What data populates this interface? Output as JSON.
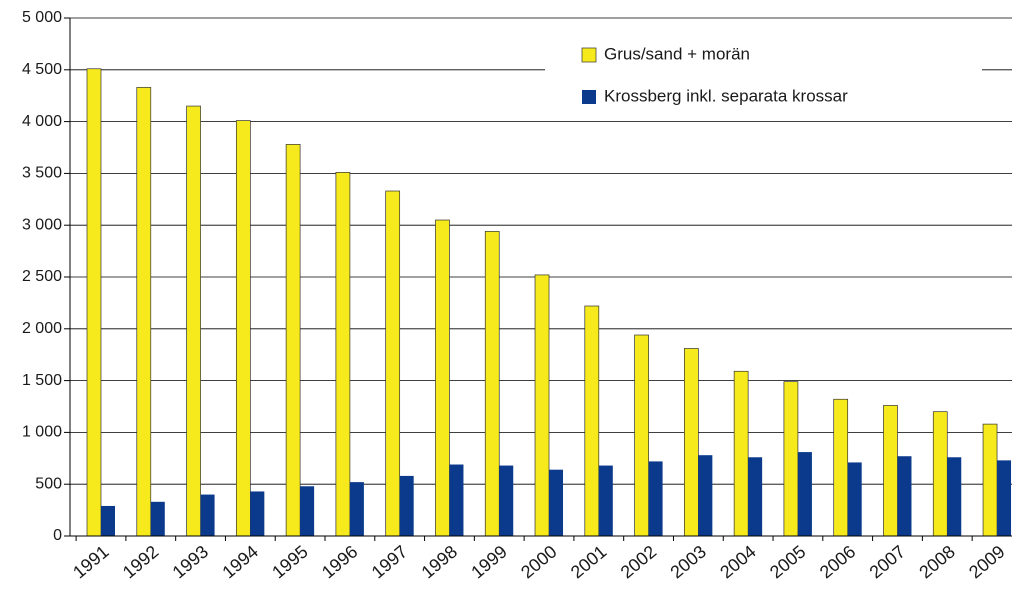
{
  "chart_data": {
    "type": "bar",
    "categories": [
      "1991",
      "1992",
      "1993",
      "1994",
      "1995",
      "1996",
      "1997",
      "1998",
      "1999",
      "2000",
      "2001",
      "2002",
      "2003",
      "2004",
      "2005",
      "2006",
      "2007",
      "2008",
      "2009"
    ],
    "series": [
      {
        "name": "Grus/sand + morän",
        "color": "#f7ea1c",
        "values": [
          4510,
          4330,
          4150,
          4010,
          3780,
          3510,
          3330,
          3050,
          2940,
          2520,
          2220,
          1940,
          1810,
          1590,
          1490,
          1320,
          1260,
          1200,
          1080
        ]
      },
      {
        "name": "Krossberg inkl. separata krossar",
        "color": "#0b3a8c",
        "values": [
          290,
          330,
          400,
          430,
          480,
          520,
          580,
          690,
          680,
          640,
          680,
          720,
          780,
          760,
          810,
          710,
          770,
          760,
          730
        ]
      }
    ],
    "ylim": [
      0,
      5000
    ],
    "yticks": [
      0,
      500,
      {
        "value": 1000,
        "label": "1 000"
      },
      {
        "value": 1500,
        "label": "1 500"
      },
      {
        "value": 2000,
        "label": "2 000"
      },
      {
        "value": 2500,
        "label": "2 500"
      },
      {
        "value": 3000,
        "label": "3 000"
      },
      {
        "value": 3500,
        "label": "3 500"
      },
      {
        "value": 4000,
        "label": "4 000"
      },
      {
        "value": 4500,
        "label": "4 500"
      },
      {
        "value": 5000,
        "label": "5 000"
      }
    ],
    "grid": true,
    "legend": "top-right"
  }
}
